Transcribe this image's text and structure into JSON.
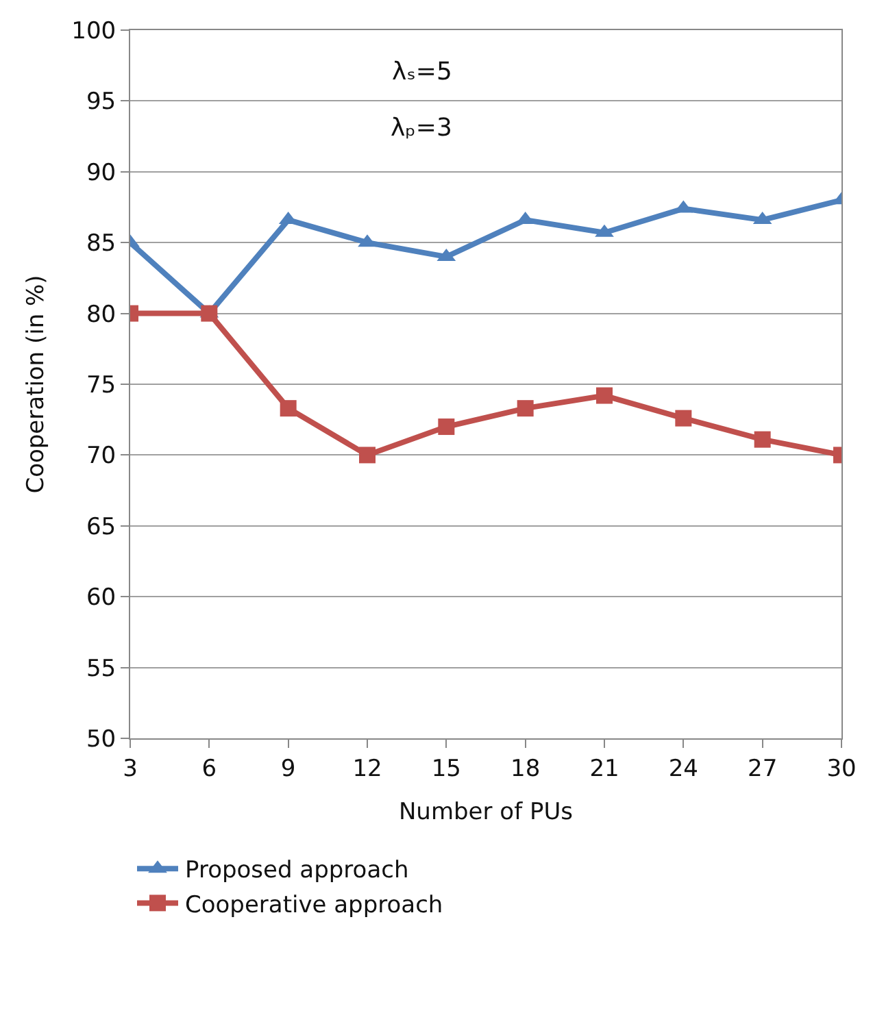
{
  "chart_data": {
    "type": "line",
    "xlabel": "Number of PUs",
    "ylabel": "Cooperation (in %)",
    "x": [
      3,
      6,
      9,
      12,
      15,
      18,
      21,
      24,
      27,
      30
    ],
    "series": [
      {
        "name": "Proposed approach",
        "color": "#4f81bd",
        "marker": "triangle",
        "values": [
          85,
          80,
          86.6,
          85,
          84.0,
          86.6,
          85.7,
          87.4,
          86.6,
          88.0
        ]
      },
      {
        "name": "Cooperative approach",
        "color": "#c0504d",
        "marker": "square",
        "values": [
          80,
          80,
          73.3,
          70,
          72.0,
          73.3,
          74.2,
          72.6,
          71.1,
          70
        ]
      }
    ],
    "xlim": [
      3,
      30
    ],
    "xticks": [
      3,
      6,
      9,
      12,
      15,
      18,
      21,
      24,
      27,
      30
    ],
    "ylim": [
      50,
      100
    ],
    "yticks": [
      50,
      55,
      60,
      65,
      70,
      75,
      80,
      85,
      90,
      95,
      100
    ],
    "grid": "y",
    "legend": "bottom",
    "line_style": "solid",
    "annotations": [
      "λₛ=5",
      "λₚ=3"
    ]
  }
}
